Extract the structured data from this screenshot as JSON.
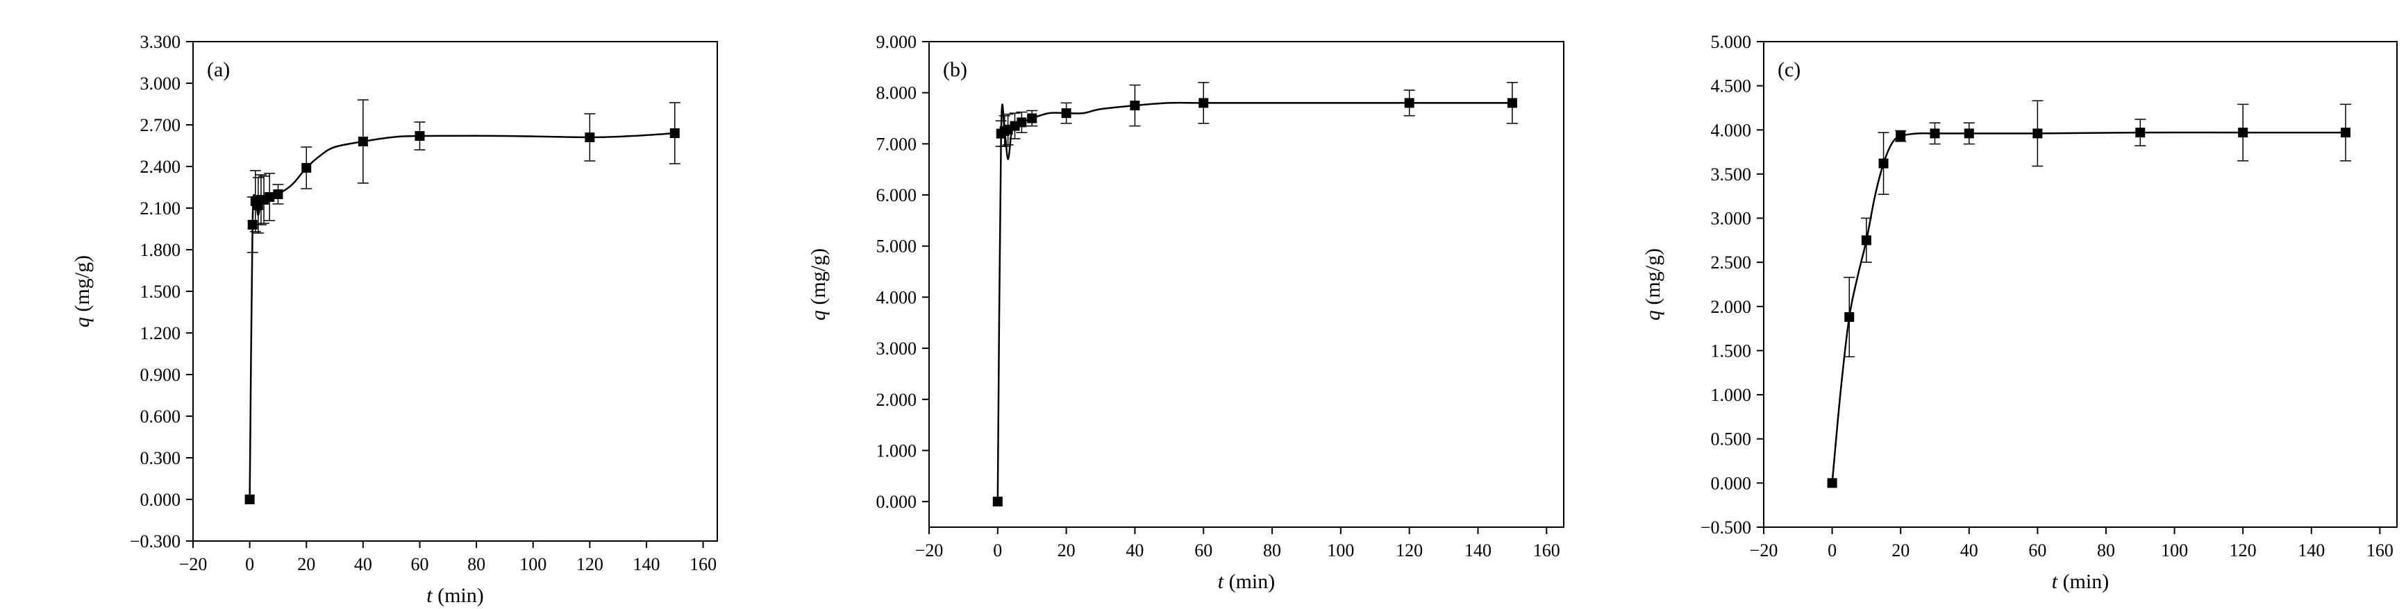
{
  "chart_data": [
    {
      "type": "scatter",
      "panel_label": "(a)",
      "xlabel_var": "t",
      "xlabel_unit": " (min)",
      "ylabel_var": "q",
      "ylabel_unit": " (mg/g)",
      "xlim": [
        -20,
        165
      ],
      "ylim": [
        -0.3,
        3.3
      ],
      "xticks": [
        -20,
        0,
        20,
        40,
        60,
        80,
        100,
        120,
        140,
        160
      ],
      "yticks": [
        -0.3,
        0.0,
        0.3,
        0.6,
        0.9,
        1.2,
        1.5,
        1.8,
        2.1,
        2.4,
        2.7,
        3.0,
        3.3
      ],
      "ytick_labels": [
        "−0.300",
        "0.000",
        "0.300",
        "0.600",
        "0.900",
        "1.200",
        "1.500",
        "1.800",
        "2.100",
        "2.400",
        "2.700",
        "3.000",
        "3.300"
      ],
      "xtick_labels": [
        "−20",
        "0",
        "20",
        "40",
        "60",
        "80",
        "100",
        "120",
        "140",
        "160"
      ],
      "points": [
        {
          "x": 0,
          "y": 0.0,
          "err": 0
        },
        {
          "x": 1,
          "y": 1.98,
          "err": 0.2
        },
        {
          "x": 2,
          "y": 2.15,
          "err": 0.22
        },
        {
          "x": 3,
          "y": 2.12,
          "err": 0.2
        },
        {
          "x": 4,
          "y": 2.16,
          "err": 0.18
        },
        {
          "x": 5,
          "y": 2.16,
          "err": 0.17
        },
        {
          "x": 7,
          "y": 2.18,
          "err": 0.17
        },
        {
          "x": 10,
          "y": 2.2,
          "err": 0.07
        },
        {
          "x": 20,
          "y": 2.39,
          "err": 0.15
        },
        {
          "x": 40,
          "y": 2.58,
          "err": 0.3
        },
        {
          "x": 60,
          "y": 2.62,
          "err": 0.1
        },
        {
          "x": 120,
          "y": 2.61,
          "err": 0.17
        },
        {
          "x": 150,
          "y": 2.64,
          "err": 0.22
        }
      ],
      "curve": [
        [
          0,
          0.0
        ],
        [
          1,
          1.98
        ],
        [
          2,
          2.15
        ],
        [
          3,
          2.05
        ],
        [
          4,
          2.16
        ],
        [
          5,
          2.16
        ],
        [
          7,
          2.18
        ],
        [
          10,
          2.2
        ],
        [
          15,
          2.27
        ],
        [
          20,
          2.39
        ],
        [
          25,
          2.48
        ],
        [
          30,
          2.54
        ],
        [
          40,
          2.58
        ],
        [
          50,
          2.61
        ],
        [
          60,
          2.62
        ],
        [
          90,
          2.62
        ],
        [
          120,
          2.61
        ],
        [
          135,
          2.62
        ],
        [
          150,
          2.64
        ]
      ]
    },
    {
      "type": "scatter",
      "panel_label": "(b)",
      "xlabel_var": "t",
      "xlabel_unit": " (min)",
      "ylabel_var": "q",
      "ylabel_unit": " (mg/g)",
      "xlim": [
        -20,
        165
      ],
      "ylim": [
        -0.5,
        9.0
      ],
      "xticks": [
        -20,
        0,
        20,
        40,
        60,
        80,
        100,
        120,
        140,
        160
      ],
      "yticks": [
        0,
        1,
        2,
        3,
        4,
        5,
        6,
        7,
        8,
        9
      ],
      "ytick_labels": [
        "0.000",
        "1.000",
        "2.000",
        "3.000",
        "4.000",
        "5.000",
        "6.000",
        "7.000",
        "8.000",
        "9.000"
      ],
      "xtick_labels": [
        "−20",
        "0",
        "20",
        "40",
        "60",
        "80",
        "100",
        "120",
        "140",
        "160"
      ],
      "points": [
        {
          "x": 0,
          "y": 0.0,
          "err": 0
        },
        {
          "x": 1,
          "y": 7.2,
          "err": 0.25
        },
        {
          "x": 2,
          "y": 7.25,
          "err": 0.3
        },
        {
          "x": 3,
          "y": 7.28,
          "err": 0.3
        },
        {
          "x": 5,
          "y": 7.35,
          "err": 0.25
        },
        {
          "x": 7,
          "y": 7.42,
          "err": 0.2
        },
        {
          "x": 10,
          "y": 7.5,
          "err": 0.15
        },
        {
          "x": 20,
          "y": 7.6,
          "err": 0.2
        },
        {
          "x": 40,
          "y": 7.75,
          "err": 0.4
        },
        {
          "x": 60,
          "y": 7.8,
          "err": 0.4
        },
        {
          "x": 120,
          "y": 7.8,
          "err": 0.25
        },
        {
          "x": 150,
          "y": 7.8,
          "err": 0.4
        }
      ],
      "curve": [
        [
          0,
          0.0
        ],
        [
          1,
          7.2
        ],
        [
          2,
          7.25
        ],
        [
          3,
          6.7
        ],
        [
          4,
          7.2
        ],
        [
          5,
          7.35
        ],
        [
          7,
          7.42
        ],
        [
          10,
          7.5
        ],
        [
          15,
          7.6
        ],
        [
          20,
          7.6
        ],
        [
          25,
          7.6
        ],
        [
          30,
          7.68
        ],
        [
          40,
          7.75
        ],
        [
          50,
          7.8
        ],
        [
          60,
          7.8
        ],
        [
          90,
          7.8
        ],
        [
          120,
          7.8
        ],
        [
          150,
          7.8
        ]
      ]
    },
    {
      "type": "scatter",
      "panel_label": "(c)",
      "xlabel_var": "t",
      "xlabel_unit": " (min)",
      "ylabel_var": "q",
      "ylabel_unit": " (mg/g)",
      "xlim": [
        -20,
        165
      ],
      "ylim": [
        -0.5,
        5.0
      ],
      "xticks": [
        -20,
        0,
        20,
        40,
        60,
        80,
        100,
        120,
        140,
        160
      ],
      "yticks": [
        -0.5,
        0.0,
        0.5,
        1.0,
        1.5,
        2.0,
        2.5,
        3.0,
        3.5,
        4.0,
        4.5,
        5.0
      ],
      "ytick_labels": [
        "−0.500",
        "0.000",
        "0.500",
        "1.000",
        "1.500",
        "2.000",
        "2.500",
        "3.000",
        "3.500",
        "4.000",
        "4.500",
        "5.000"
      ],
      "xtick_labels": [
        "−20",
        "0",
        "20",
        "40",
        "60",
        "80",
        "100",
        "120",
        "140",
        "160"
      ],
      "points": [
        {
          "x": 0,
          "y": 0.0,
          "err": 0
        },
        {
          "x": 5,
          "y": 1.88,
          "err": 0.45
        },
        {
          "x": 10,
          "y": 2.75,
          "err": 0.25
        },
        {
          "x": 15,
          "y": 3.62,
          "err": 0.35
        },
        {
          "x": 20,
          "y": 3.93,
          "err": 0.06
        },
        {
          "x": 30,
          "y": 3.96,
          "err": 0.12
        },
        {
          "x": 40,
          "y": 3.96,
          "err": 0.12
        },
        {
          "x": 60,
          "y": 3.96,
          "err": 0.37
        },
        {
          "x": 90,
          "y": 3.97,
          "err": 0.15
        },
        {
          "x": 120,
          "y": 3.97,
          "err": 0.32
        },
        {
          "x": 150,
          "y": 3.97,
          "err": 0.32
        }
      ],
      "curve": [
        [
          0,
          0.0
        ],
        [
          2.5,
          1.05
        ],
        [
          5,
          1.88
        ],
        [
          7.5,
          2.35
        ],
        [
          10,
          2.75
        ],
        [
          12.5,
          3.25
        ],
        [
          15,
          3.62
        ],
        [
          17.5,
          3.85
        ],
        [
          20,
          3.93
        ],
        [
          25,
          3.96
        ],
        [
          30,
          3.96
        ],
        [
          40,
          3.96
        ],
        [
          60,
          3.96
        ],
        [
          90,
          3.97
        ],
        [
          120,
          3.97
        ],
        [
          150,
          3.97
        ]
      ]
    }
  ]
}
